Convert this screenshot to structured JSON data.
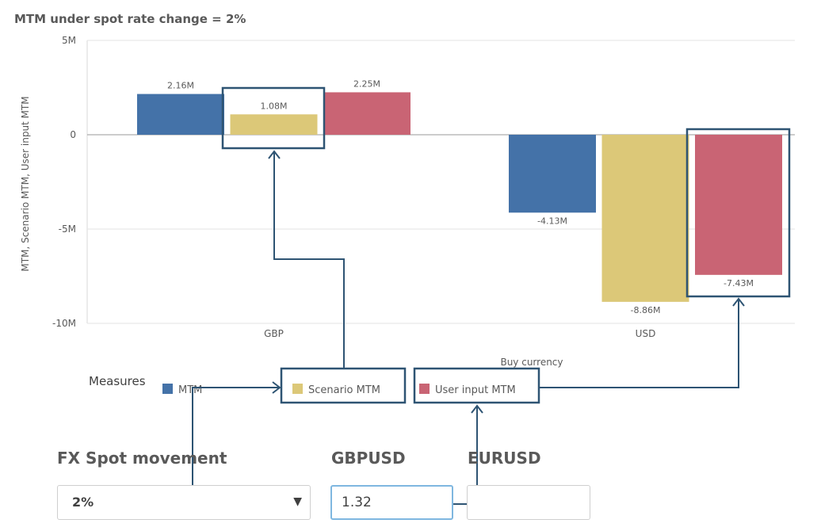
{
  "chart_data": {
    "type": "bar",
    "title": "MTM under spot rate change = 2%",
    "xlabel": "Buy currency",
    "ylabel": "MTM, Scenario MTM, User input MTM",
    "categories": [
      "GBP",
      "USD"
    ],
    "series": [
      {
        "name": "MTM",
        "values": [
          2.16,
          -4.13
        ],
        "labels": [
          "2.16M",
          "-4.13M"
        ],
        "color": "#4472a8"
      },
      {
        "name": "Scenario MTM",
        "values": [
          1.08,
          -8.86
        ],
        "labels": [
          "1.08M",
          "-8.86M"
        ],
        "color": "#dcc878"
      },
      {
        "name": "User input MTM",
        "values": [
          2.25,
          -7.43
        ],
        "labels": [
          "2.25M",
          "-7.43M"
        ],
        "color": "#c96474"
      }
    ],
    "ylim": [
      -10,
      5
    ],
    "yticks": [
      5,
      0,
      -5,
      -10
    ],
    "ytick_labels": [
      "5M",
      "0",
      "-5M",
      "-10M"
    ],
    "grid": true,
    "legend_title": "Measures",
    "legend_position": "bottom-left"
  },
  "controls": {
    "fx_spot_label": "FX Spot movement",
    "fx_spot_value": "2%",
    "gbpusd_label": "GBPUSD",
    "gbpusd_value": "1.32",
    "eurusd_label": "EURUSD",
    "eurusd_value": ""
  },
  "annotation_color": "#2e5473"
}
